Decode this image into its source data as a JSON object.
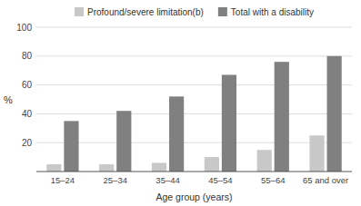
{
  "chart_data": {
    "type": "bar",
    "categories": [
      "15–24",
      "25–34",
      "35–44",
      "45–54",
      "55–64",
      "65 and over"
    ],
    "series": [
      {
        "name": "Profound/severe limitation(b)",
        "color": "#c8c8c8",
        "values": [
          5,
          5,
          6,
          10,
          15,
          25
        ]
      },
      {
        "name": "Total with a disability",
        "color": "#808080",
        "values": [
          35,
          42,
          52,
          67,
          76,
          80
        ]
      }
    ],
    "xlabel": "Age group (years)",
    "ylabel": "%",
    "ylim": [
      0,
      100
    ],
    "yticks": [
      20,
      40,
      60,
      80,
      100
    ],
    "grid": true,
    "legend": "top"
  }
}
